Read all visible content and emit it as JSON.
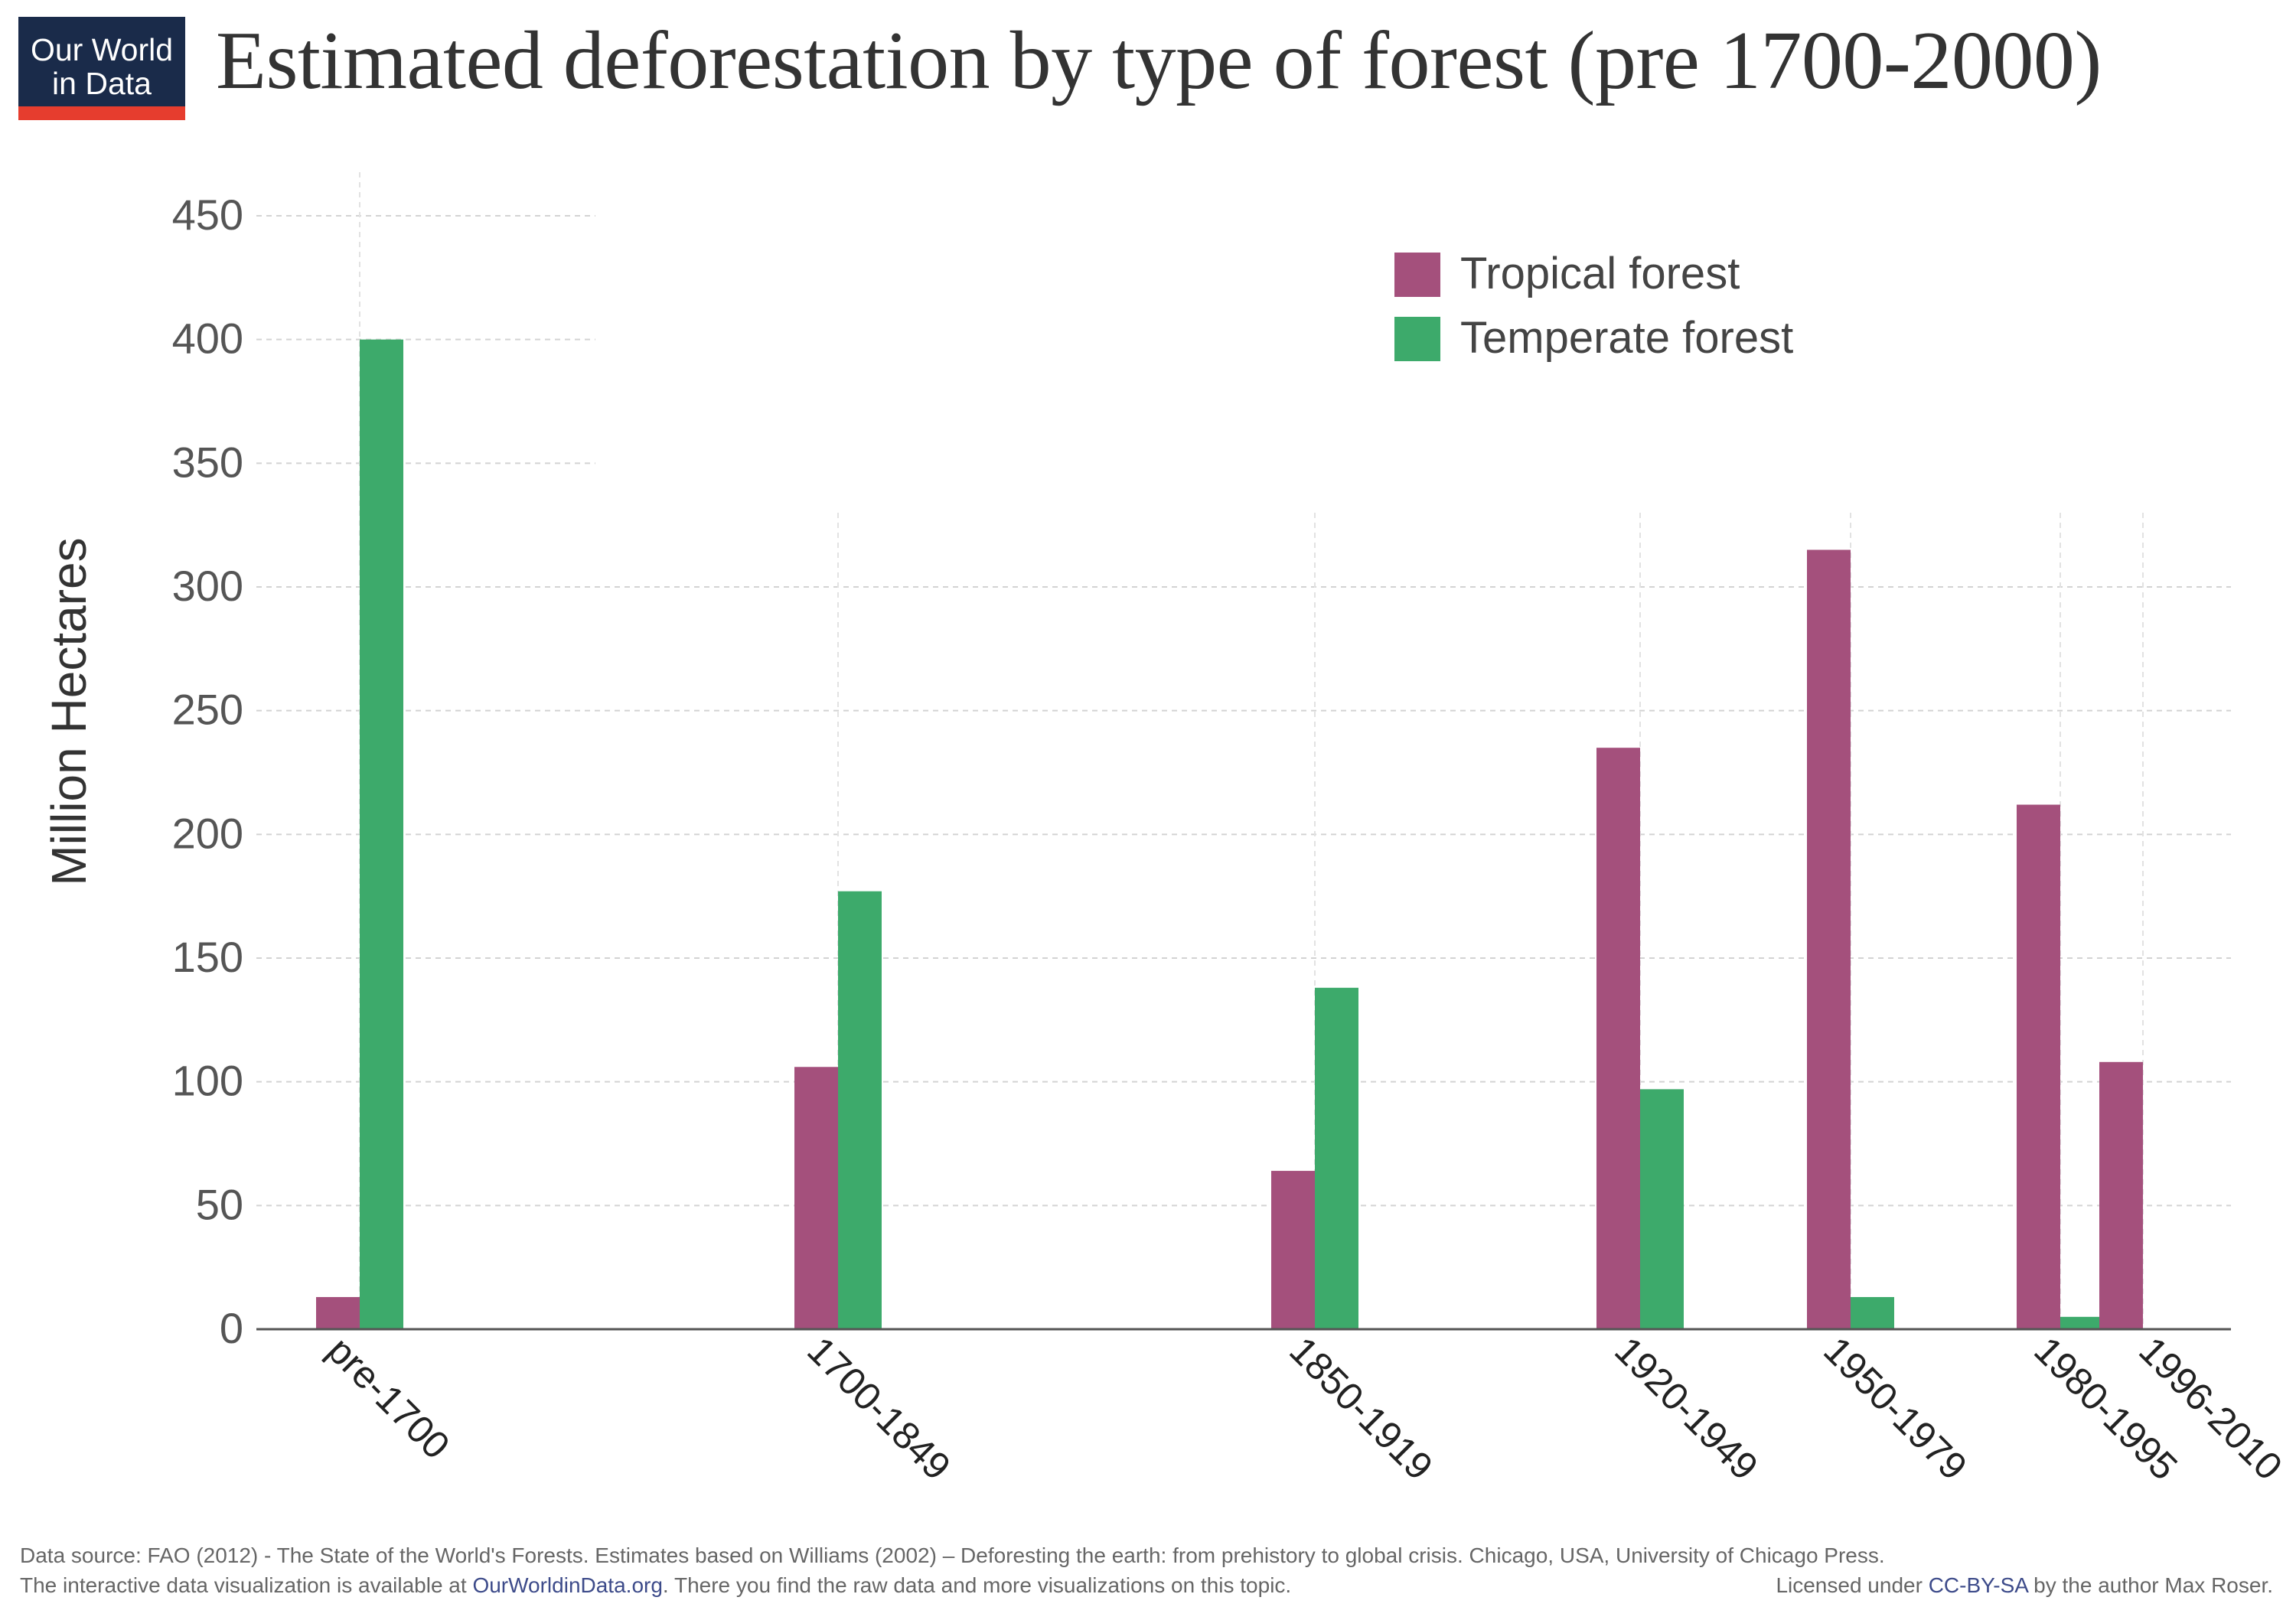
{
  "header": {
    "logo_line1": "Our World",
    "logo_line2": "in Data",
    "title": "Estimated deforestation by type of forest (pre 1700-2000)"
  },
  "colors": {
    "tropical": "#a4507c",
    "temperate": "#3daa6b",
    "grid": "#d3d3d3",
    "axis": "#555555",
    "tick_text": "#555555",
    "category_text": "#222222"
  },
  "chart_data": {
    "type": "bar",
    "title": "Estimated deforestation by type of forest (pre 1700-2000)",
    "xlabel": "",
    "ylabel": "Million Hectares",
    "ylim": [
      0,
      450
    ],
    "yticks": [
      0,
      50,
      100,
      150,
      200,
      250,
      300,
      350,
      400,
      450
    ],
    "categories": [
      "pre-1700",
      "1700-1849",
      "1850-1919",
      "1920-1949",
      "1950-1979",
      "1980-1995",
      "1996-2010"
    ],
    "series": [
      {
        "name": "Tropical forest",
        "values": [
          13,
          106,
          64,
          235,
          315,
          212,
          108
        ]
      },
      {
        "name": "Temperate forest",
        "values": [
          400,
          177,
          138,
          97,
          13,
          5,
          null
        ]
      }
    ],
    "legend": "top-right",
    "grid": true,
    "xaxis_note": "categories placed along a year scale"
  },
  "footer": {
    "source": "Data source: FAO (2012) - The State of the World's Forests. Estimates based on Williams (2002) – Deforesting the earth: from prehistory to global crisis. Chicago, USA, University of Chicago Press.",
    "interactive_prefix": "The interactive data visualization is available at ",
    "interactive_link": "OurWorldinData.org",
    "interactive_suffix": ". There you find the raw data and more visualizations on this topic.",
    "license_prefix": "Licensed under ",
    "license_link": "CC-BY-SA",
    "license_suffix": " by the author Max Roser."
  }
}
